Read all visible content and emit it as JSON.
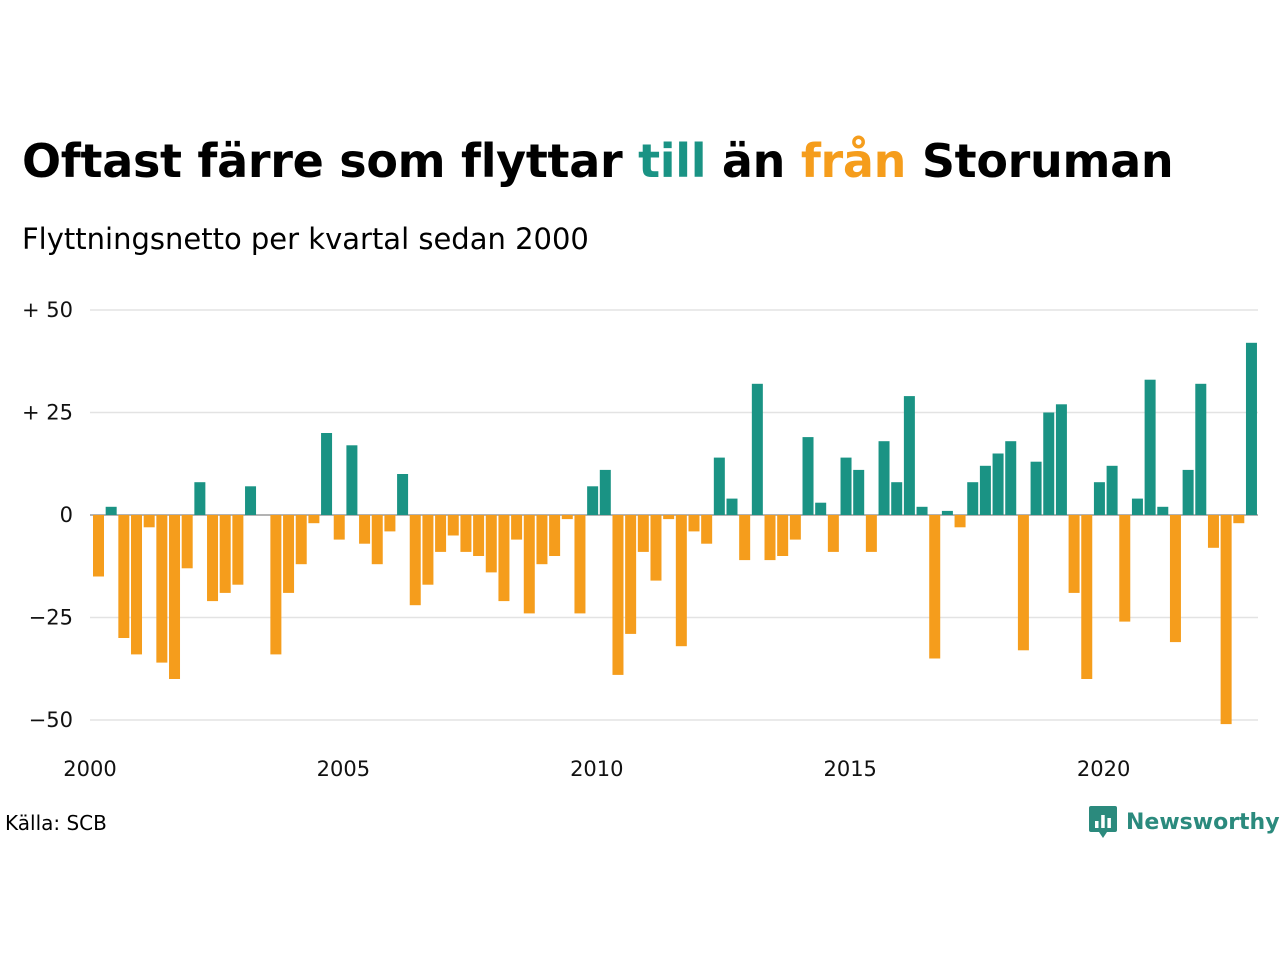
{
  "title": {
    "before": "Oftast färre som flyttar ",
    "word_in": "till",
    "middle": " än ",
    "word_out": "från",
    "after": " Storuman"
  },
  "subtitle": "Flyttningsnetto per kvartal sedan 2000",
  "source": "Källa: SCB",
  "brand": {
    "name": "Newsworthy",
    "icon": "newsworthy-chart-bubble-icon"
  },
  "colors": {
    "positive": "#1a9384",
    "negative": "#f59d1c",
    "grid": "#e3e3e3",
    "brand": "#2b8a7d"
  },
  "chart_data": {
    "type": "bar",
    "x_start": "2000-Q1",
    "ylim": [
      -55,
      50
    ],
    "yticks": [
      {
        "value": 50,
        "label": "+ 50"
      },
      {
        "value": 25,
        "label": "+ 25"
      },
      {
        "value": 0,
        "label": "0"
      },
      {
        "value": -25,
        "label": "−25"
      },
      {
        "value": -50,
        "label": "−50"
      }
    ],
    "xticks": [
      "2000",
      "2005",
      "2010",
      "2015",
      "2020"
    ],
    "values": [
      -15,
      2,
      -30,
      -34,
      -3,
      -36,
      -40,
      -13,
      8,
      -21,
      -19,
      -17,
      7,
      0,
      -34,
      -19,
      -12,
      -2,
      20,
      -6,
      17,
      -7,
      -12,
      -4,
      10,
      -22,
      -17,
      -9,
      -5,
      -9,
      -10,
      -14,
      -21,
      -6,
      -24,
      -12,
      -10,
      -1,
      -24,
      7,
      11,
      -39,
      -29,
      -9,
      -16,
      -1,
      -32,
      -4,
      -7,
      14,
      4,
      -11,
      32,
      -11,
      -10,
      -6,
      19,
      3,
      -9,
      14,
      11,
      -9,
      18,
      8,
      29,
      2,
      -35,
      1,
      -3,
      8,
      12,
      15,
      18,
      -33,
      13,
      25,
      27,
      -19,
      -40,
      8,
      12,
      -26,
      4,
      33,
      2,
      -31,
      11,
      32,
      -8,
      -51,
      -2,
      42
    ]
  }
}
